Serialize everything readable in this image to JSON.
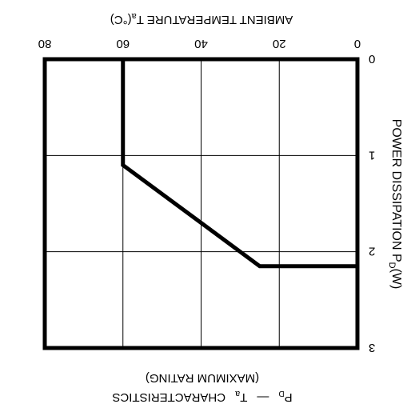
{
  "chart_data": {
    "type": "line",
    "title": "Pᴅ — Ta  CHARACTERISTICS",
    "title_parts": {
      "pd_main": "P",
      "pd_sub": "D",
      "dash": "—",
      "ta_main": "T",
      "ta_sub": "a",
      "rest": "CHARACTERISTICS"
    },
    "subtitle": "(MAXIMUM RATING)",
    "xlabel": "AMBIENT TEMPERATURE  Ta(°C)",
    "xlabel_parts": {
      "main": "AMBIENT TEMPERATURE  T",
      "sub": "a",
      "unit": "(°C)"
    },
    "ylabel": "POWER DISSIPATION  PD(W)",
    "ylabel_parts": {
      "main": "POWER DISSIPATION  P",
      "sub": "D",
      "unit": "(W)"
    },
    "x_ticks": [
      "0",
      "20",
      "40",
      "60",
      "80"
    ],
    "y_ticks": [
      "0",
      "1",
      "2",
      "3"
    ],
    "xlim": [
      0,
      80
    ],
    "ylim": [
      0,
      3
    ],
    "grid": true,
    "rotated_180": true,
    "series": [
      {
        "x": [
          0,
          25,
          60,
          60
        ],
        "y": [
          2.15,
          2.15,
          1.1,
          0
        ]
      }
    ],
    "line_color": "#000000"
  }
}
